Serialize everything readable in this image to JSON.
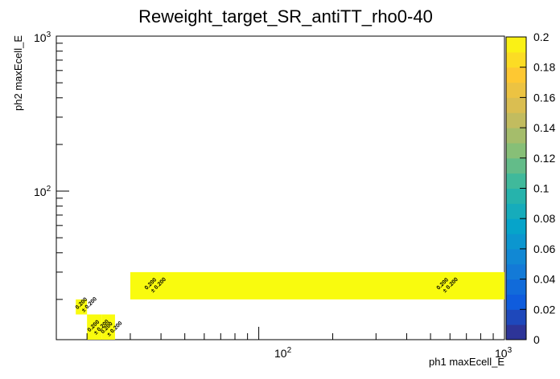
{
  "chart_data": {
    "type": "heatmap",
    "title": "Reweight_target_SR_antiTT_rho0-40",
    "xlabel": "ph1 maxEcell_E",
    "ylabel": "ph2 maxEcell_E",
    "xscale": "log",
    "yscale": "log",
    "xlim": [
      15,
      1000
    ],
    "ylim": [
      11,
      1000
    ],
    "x_tick_labels": [
      "10^2",
      "10^3"
    ],
    "y_tick_labels": [
      "10^2",
      "10^3"
    ],
    "colorbar": {
      "min": 0,
      "max": 0.2,
      "ticks": [
        "0",
        "0.02",
        "0.04",
        "0.06",
        "0.08",
        "0.1",
        "0.12",
        "0.14",
        "0.16",
        "0.18",
        "0.2"
      ]
    },
    "grid": false,
    "cells": [
      {
        "x0": 30,
        "x1": 1000,
        "y0": 20,
        "y1": 30,
        "value": 0.2,
        "error": 0.2,
        "label_value": "0.200",
        "label_error": "± 0.200",
        "label_x": 35,
        "label_y": 23
      },
      {
        "x0": 30,
        "x1": 1000,
        "y0": 20,
        "y1": 30,
        "value": 0.2,
        "error": 0.2,
        "label_value": "0.200",
        "label_error": "± 0.200",
        "label_x": 540,
        "label_y": 23
      },
      {
        "x0": 18,
        "x1": 20,
        "y0": 16,
        "y1": 20,
        "value": 0.2,
        "error": 0.2,
        "label_value": "0.200",
        "label_error": "± 0.200",
        "label_x": 18.3,
        "label_y": 17.2
      },
      {
        "x0": 20,
        "x1": 23,
        "y0": 11,
        "y1": 16,
        "value": 0.2,
        "error": 0.2,
        "label_value": "0.200",
        "label_error": "± 0.200",
        "label_x": 20.5,
        "label_y": 12.3
      },
      {
        "x0": 23,
        "x1": 26,
        "y0": 11,
        "y1": 16,
        "value": 0.2,
        "error": 0.2,
        "label_value": "0.200",
        "label_error": "± 0.200",
        "label_x": 23.2,
        "label_y": 12.0
      }
    ]
  }
}
